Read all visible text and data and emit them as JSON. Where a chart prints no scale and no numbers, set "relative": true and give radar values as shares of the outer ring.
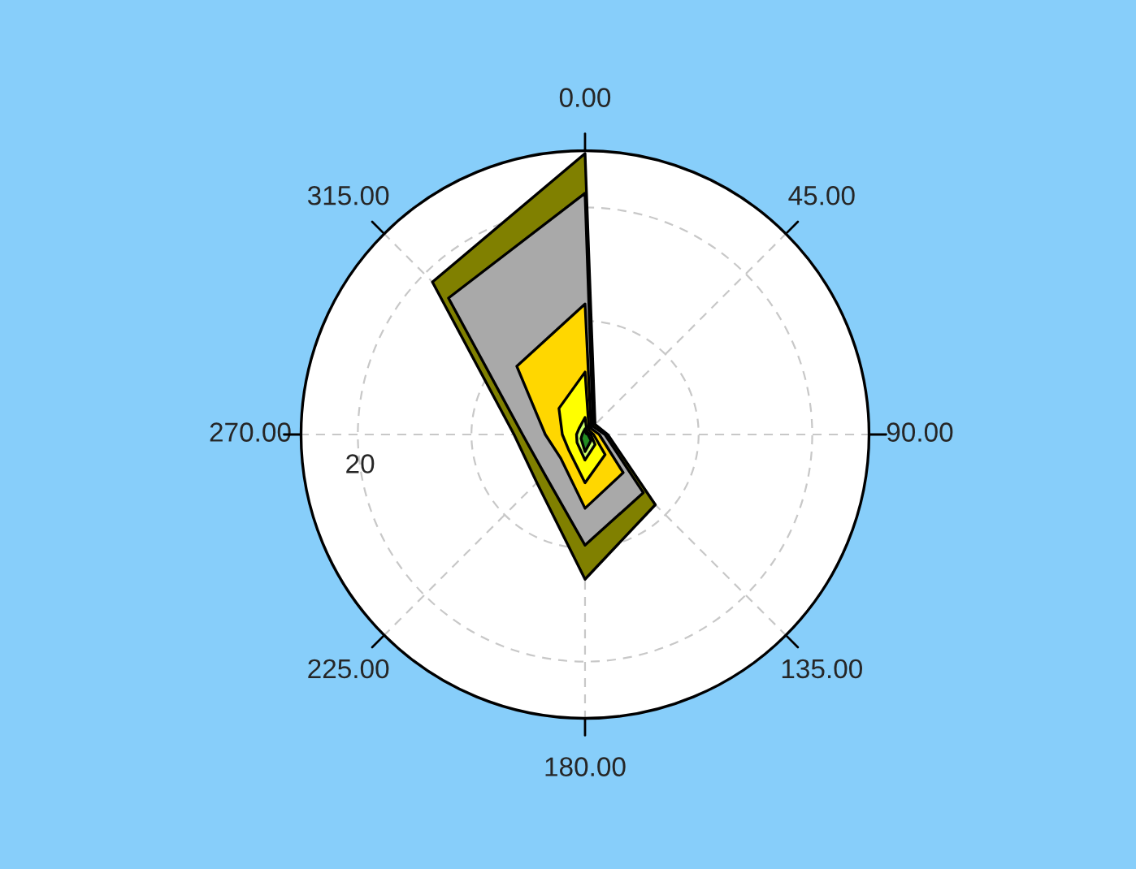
{
  "chart_data": {
    "type": "radar",
    "relative": true,
    "grid": true,
    "legend": false,
    "annotations": [
      "20"
    ],
    "categories": [
      "0.00",
      "45.00",
      "90.00",
      "135.00",
      "180.00",
      "225.00",
      "270.00",
      "315.00"
    ],
    "series": [
      {
        "color": "#808000",
        "values": [
          0.99,
          0.05,
          0.08,
          0.35,
          0.51,
          0.24,
          0.25,
          0.76
        ]
      },
      {
        "color": "#a9a9a9",
        "values": [
          0.85,
          0.04,
          0.07,
          0.29,
          0.39,
          0.2,
          0.22,
          0.68
        ]
      },
      {
        "color": "#ffd700",
        "values": [
          0.46,
          0.03,
          0.05,
          0.19,
          0.26,
          0.12,
          0.14,
          0.34
        ]
      },
      {
        "color": "#ffff00",
        "values": [
          0.22,
          0.02,
          0.03,
          0.1,
          0.17,
          0.08,
          0.08,
          0.13
        ]
      },
      {
        "color": "#ccff66",
        "values": [
          0.06,
          0.01,
          0.02,
          0.05,
          0.09,
          0.04,
          0.03,
          0.03
        ]
      },
      {
        "color": "#228b22",
        "values": [
          0.02,
          0.005,
          0.01,
          0.03,
          0.06,
          0.02,
          0.01,
          0.01
        ]
      }
    ]
  }
}
